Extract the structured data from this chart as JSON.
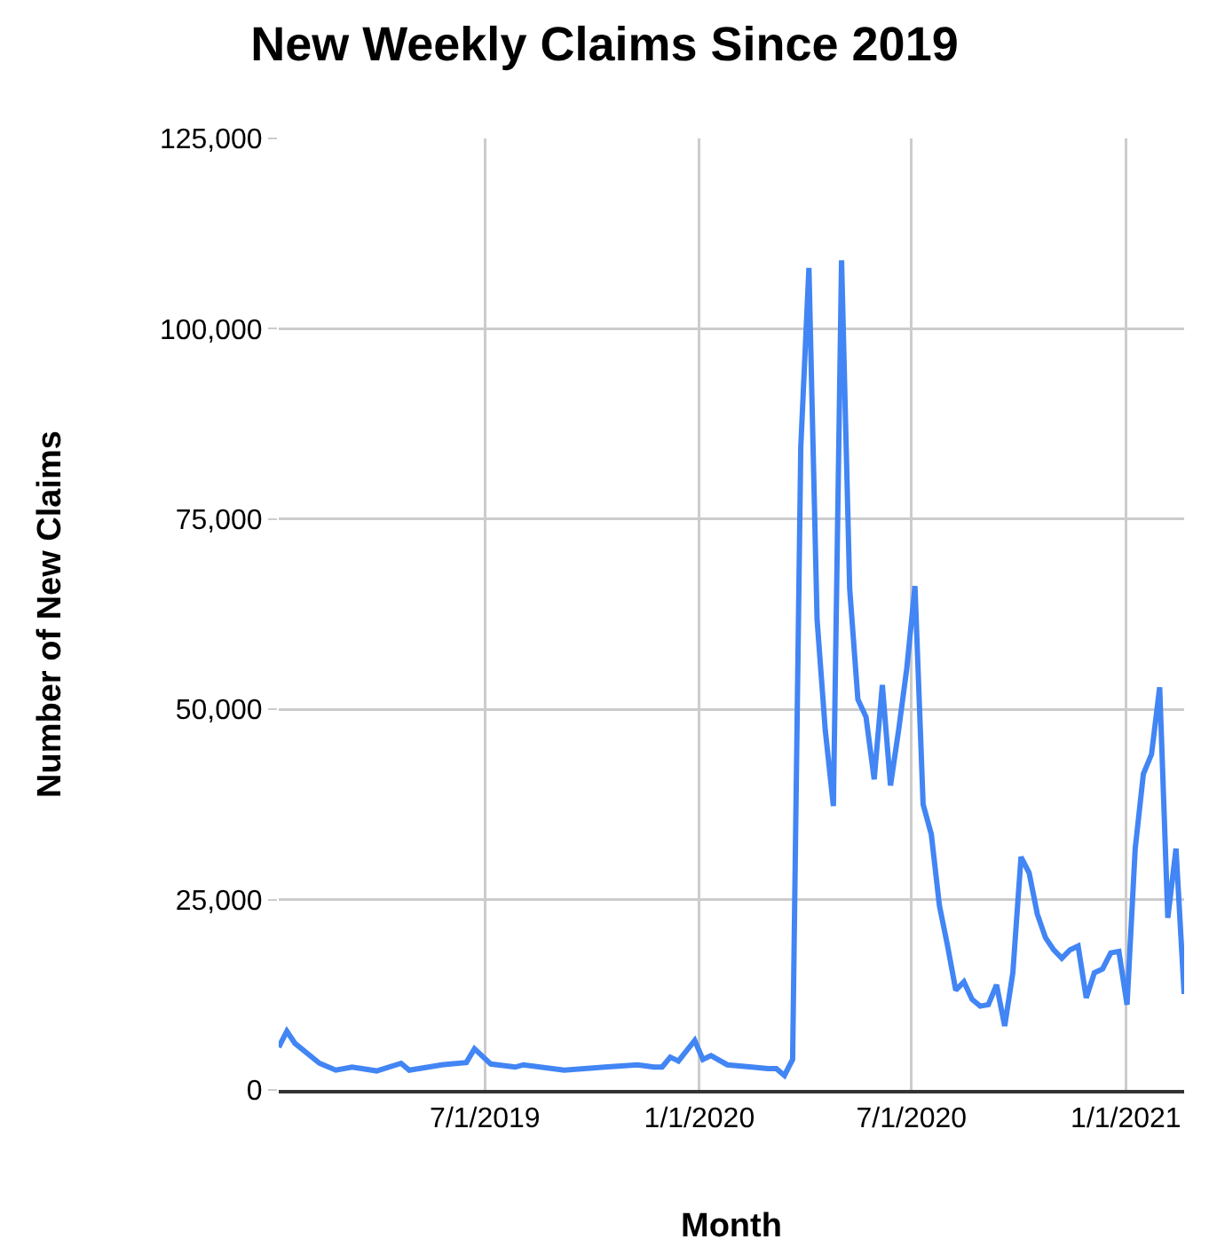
{
  "chart_data": {
    "type": "line",
    "title": "New Weekly Claims Since 2019",
    "xlabel": "Month",
    "ylabel": "Number of New Claims",
    "x": [
      "2019-01-05",
      "2019-01-12",
      "2019-01-19",
      "2019-02-09",
      "2019-02-23",
      "2019-03-09",
      "2019-03-30",
      "2019-04-20",
      "2019-04-27",
      "2019-05-25",
      "2019-06-15",
      "2019-06-22",
      "2019-07-06",
      "2019-07-27",
      "2019-08-03",
      "2019-09-07",
      "2019-10-12",
      "2019-11-09",
      "2019-11-23",
      "2019-11-30",
      "2019-12-07",
      "2019-12-14",
      "2019-12-28",
      "2020-01-04",
      "2020-01-11",
      "2020-01-25",
      "2020-02-15",
      "2020-02-29",
      "2020-03-07",
      "2020-03-14",
      "2020-03-21",
      "2020-03-28",
      "2020-04-04",
      "2020-04-11",
      "2020-04-18",
      "2020-04-25",
      "2020-05-02",
      "2020-05-09",
      "2020-05-16",
      "2020-05-23",
      "2020-05-30",
      "2020-06-06",
      "2020-06-13",
      "2020-06-20",
      "2020-06-27",
      "2020-07-04",
      "2020-07-11",
      "2020-07-18",
      "2020-07-25",
      "2020-08-01",
      "2020-08-08",
      "2020-08-15",
      "2020-08-22",
      "2020-08-29",
      "2020-09-05",
      "2020-09-12",
      "2020-09-19",
      "2020-09-26",
      "2020-10-03",
      "2020-10-10",
      "2020-10-17",
      "2020-10-24",
      "2020-10-31",
      "2020-11-07",
      "2020-11-14",
      "2020-11-21",
      "2020-11-28",
      "2020-12-05",
      "2020-12-12",
      "2020-12-19",
      "2020-12-26",
      "2021-01-02",
      "2021-01-09",
      "2021-01-16",
      "2021-01-23",
      "2021-01-30",
      "2021-02-06",
      "2021-02-13",
      "2021-02-20"
    ],
    "series": [
      {
        "color": "#4285f4",
        "values": [
          5600,
          7700,
          6100,
          3500,
          2600,
          3000,
          2500,
          3500,
          2600,
          3300,
          3600,
          5400,
          3400,
          3000,
          3300,
          2600,
          3000,
          3300,
          3000,
          3000,
          4300,
          3800,
          6500,
          4000,
          4500,
          3300,
          3000,
          2800,
          2800,
          1900,
          4000,
          84400,
          108000,
          61800,
          47300,
          37300,
          109000,
          65800,
          51300,
          49000,
          40800,
          53200,
          40000,
          47300,
          55400,
          66200,
          37500,
          33600,
          24200,
          18900,
          13100,
          14200,
          11900,
          11000,
          11200,
          13800,
          8400,
          15400,
          30600,
          28500,
          23100,
          20000,
          18400,
          17300,
          18400,
          18900,
          12100,
          15400,
          15900,
          18000,
          18200,
          11200,
          31700,
          41500,
          44100,
          52900,
          22600,
          31700,
          12600
        ]
      }
    ],
    "xlim": [
      "2019-01-05",
      "2021-02-20"
    ],
    "xticks": [
      {
        "value": "2019-07-01",
        "label": "7/1/2019"
      },
      {
        "value": "2020-01-01",
        "label": "1/1/2020"
      },
      {
        "value": "2020-07-01",
        "label": "7/1/2020"
      },
      {
        "value": "2021-01-01",
        "label": "1/1/2021"
      }
    ],
    "ylim": [
      0,
      125000
    ],
    "yticks": [
      0,
      {
        "value": 25000,
        "label": "25,000"
      },
      {
        "value": 50000,
        "label": "50,000"
      },
      {
        "value": 75000,
        "label": "75,000"
      },
      {
        "value": 100000,
        "label": "100,000"
      },
      {
        "value": 125000,
        "label": "125,000"
      }
    ],
    "grid": true,
    "marker": "none",
    "line_style": "solid"
  }
}
